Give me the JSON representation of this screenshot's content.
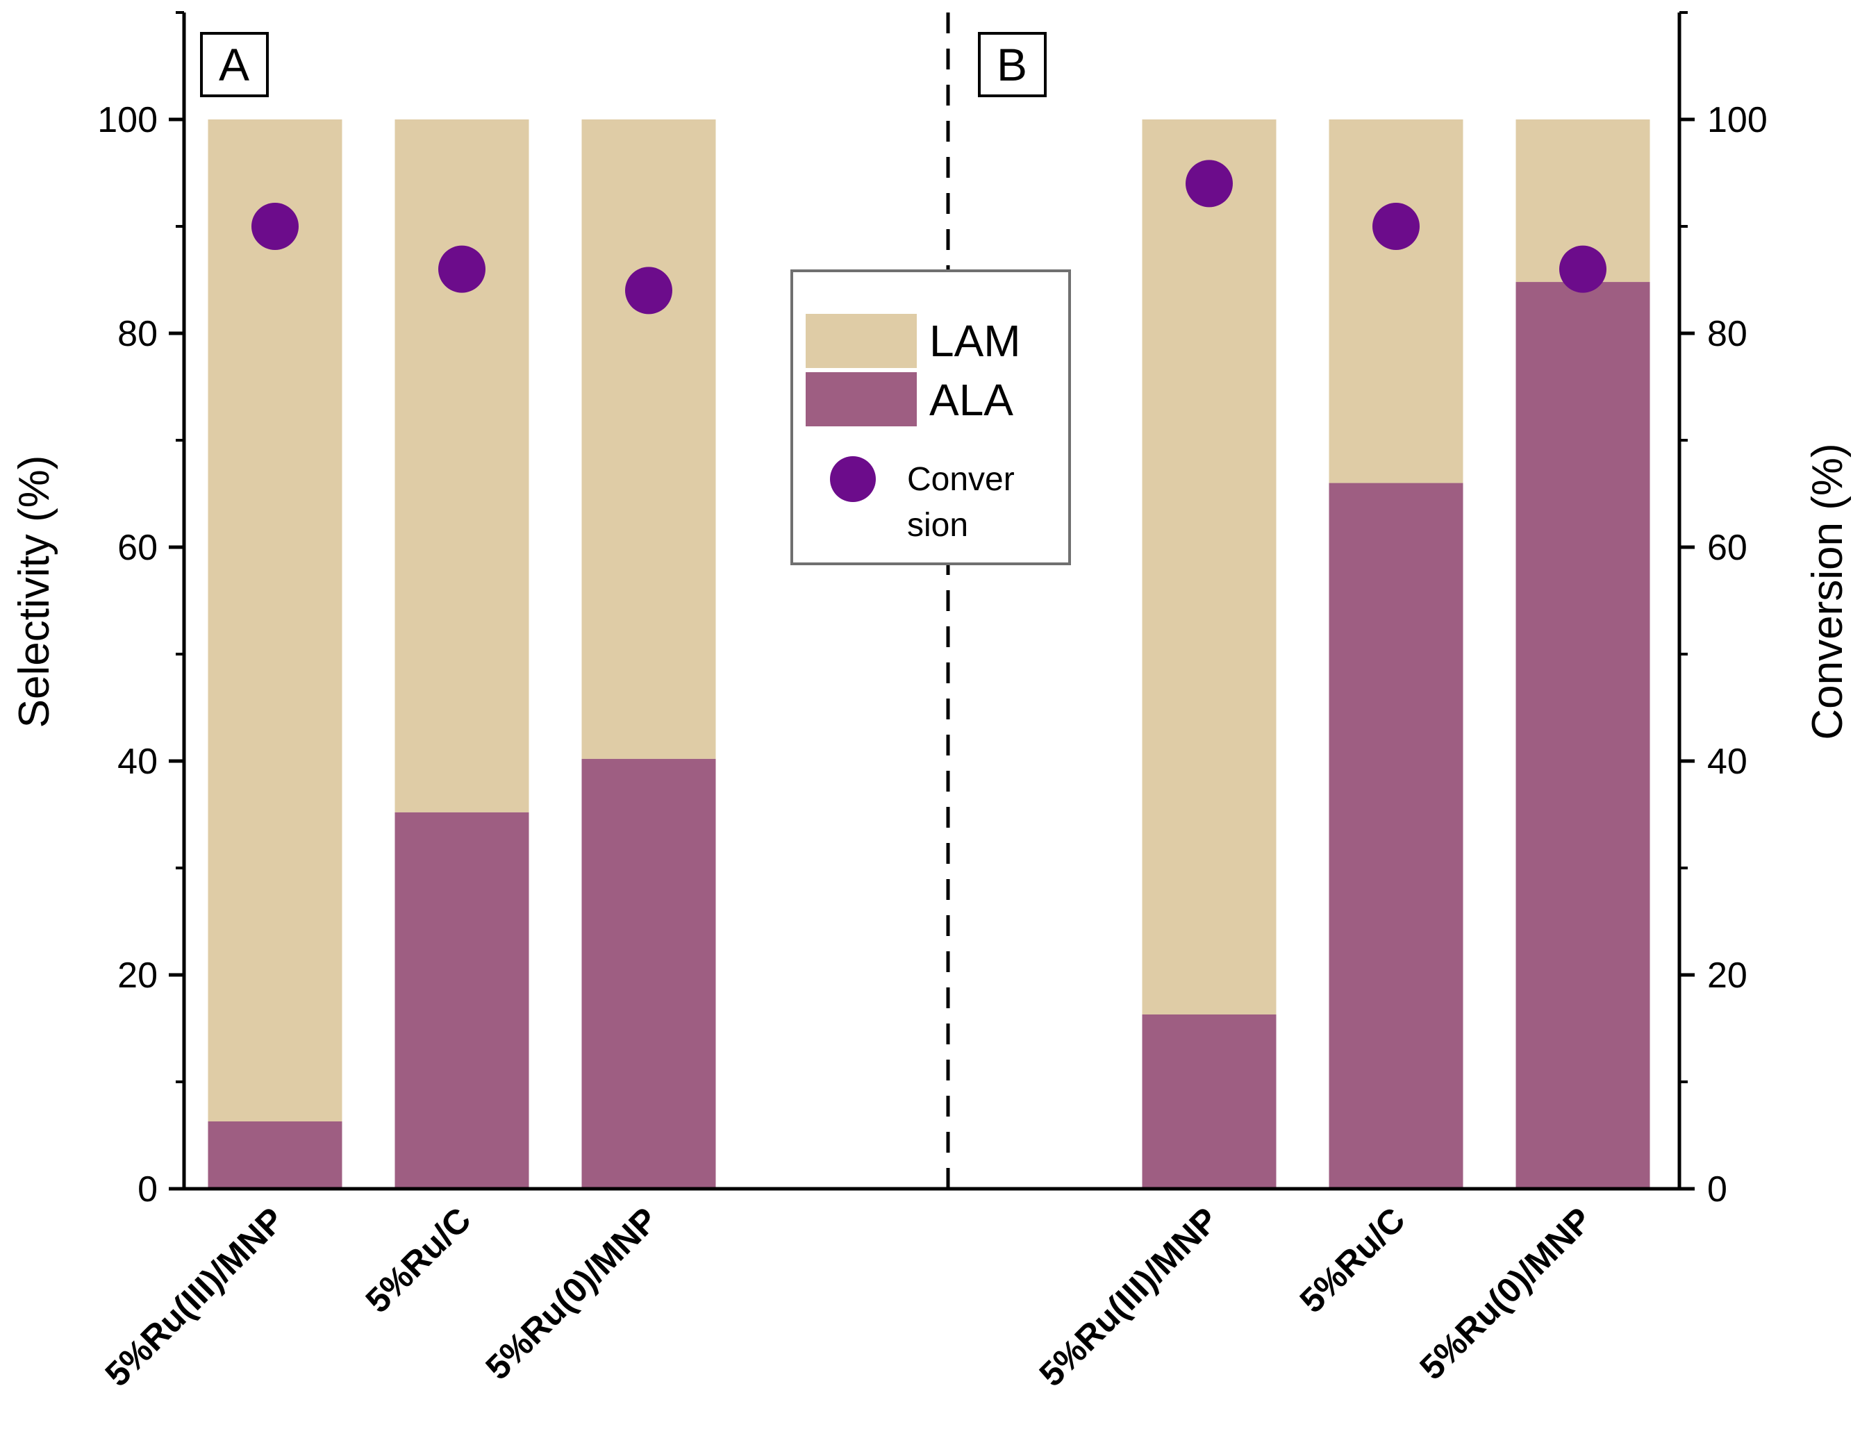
{
  "colors": {
    "lam": "#DFCCA6",
    "ala": "#9E5E82",
    "conversion": "#6C0C8B",
    "axis": "#000000",
    "legend_border": "#707070"
  },
  "chart_data": {
    "type": "bar",
    "subtype": "stacked bar with scatter overlay",
    "panels": [
      {
        "label": "A",
        "categories": [
          "5%Ru(III)/MNP",
          "5%Ru/C",
          "5%Ru(0)/MNP"
        ],
        "series": [
          {
            "name": "ALA",
            "values": [
              6.3,
              35.2,
              40.2
            ]
          },
          {
            "name": "LAM",
            "values": [
              93.7,
              64.8,
              59.8
            ]
          }
        ],
        "conversion": [
          90,
          86,
          84
        ]
      },
      {
        "label": "B",
        "categories": [
          "5%Ru(III)/MNP",
          "5%Ru/C",
          "5%Ru(0)/MNP"
        ],
        "series": [
          {
            "name": "ALA",
            "values": [
              16.3,
              66.0,
              84.8
            ]
          },
          {
            "name": "LAM",
            "values": [
              83.7,
              34.0,
              15.2
            ]
          }
        ],
        "conversion": [
          94,
          90,
          86
        ]
      }
    ],
    "ylabel_left": "Selectivity (%)",
    "ylabel_right": "Conversion (%)",
    "ylim": [
      0,
      110
    ],
    "yticks": [
      0,
      20,
      40,
      60,
      80,
      100
    ],
    "legend": {
      "position": "center",
      "entries": [
        {
          "name": "LAM",
          "label": "LAM"
        },
        {
          "name": "ALA",
          "label": "ALA"
        },
        {
          "name": "Conversion",
          "label_lines": [
            "Conver",
            "sion"
          ]
        }
      ]
    },
    "divider": "dashed vertical line between panels A and B",
    "grid": false
  }
}
